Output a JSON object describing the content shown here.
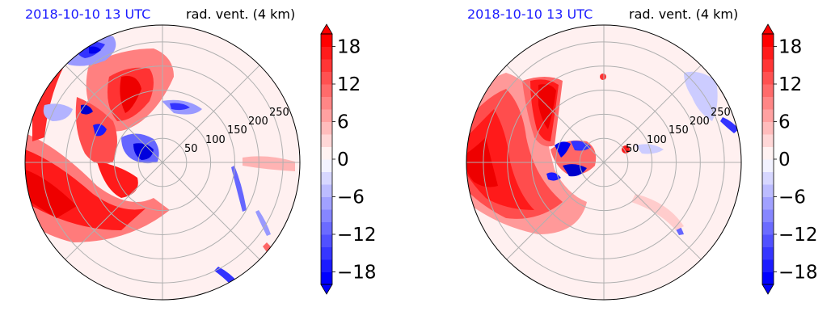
{
  "panels": [
    {
      "time_label": "2018-10-10 13 UTC",
      "variable_label": "rad. vent. (4 km)",
      "radial_ticks": [
        "50",
        "100",
        "150",
        "200",
        "250"
      ]
    },
    {
      "time_label": "2018-10-10 13 UTC",
      "variable_label": "rad. vent. (4 km)",
      "radial_ticks": [
        "50",
        "100",
        "150",
        "200",
        "250"
      ]
    }
  ],
  "colorbar": {
    "tick_labels": [
      "18",
      "12",
      "6",
      "0",
      "−6",
      "−12",
      "−18"
    ],
    "tick_values": [
      18,
      12,
      6,
      0,
      -6,
      -12,
      -18
    ],
    "range": [
      -20,
      20
    ],
    "step": 2,
    "colormap": "bwr",
    "extend": "both"
  },
  "chart_data": [
    {
      "type": "heatmap",
      "projection": "polar",
      "title": "rad. vent. (4 km)",
      "subtitle": "2018-10-10 13 UTC",
      "radial_ticks": [
        50,
        100,
        150,
        200,
        250
      ],
      "radial_max": 285,
      "color_range": [
        -20,
        20
      ],
      "regions": [
        {
          "sign": "positive",
          "angle_range_deg": [
            160,
            260
          ],
          "radius_range": [
            100,
            285
          ],
          "value": 18
        },
        {
          "sign": "positive",
          "angle_range_deg": [
            60,
            130
          ],
          "radius_range": [
            20,
            200
          ],
          "value": 16
        },
        {
          "sign": "negative",
          "angle_range_deg": [
            100,
            150
          ],
          "radius_range": [
            150,
            260
          ],
          "value": -16
        },
        {
          "sign": "negative",
          "angle_range_deg": [
            140,
            220
          ],
          "radius_range": [
            5,
            60
          ],
          "value": -18
        }
      ]
    },
    {
      "type": "heatmap",
      "projection": "polar",
      "title": "rad. vent. (4 km)",
      "subtitle": "2018-10-10 13 UTC",
      "radial_ticks": [
        50,
        100,
        150,
        200,
        250
      ],
      "radial_max": 285,
      "color_range": [
        -20,
        20
      ],
      "regions": [
        {
          "sign": "positive",
          "angle_range_deg": [
            150,
            260
          ],
          "radius_range": [
            80,
            285
          ],
          "value": 18
        },
        {
          "sign": "positive",
          "angle_range_deg": [
            95,
            150
          ],
          "radius_range": [
            40,
            190
          ],
          "value": 18
        },
        {
          "sign": "negative",
          "angle_range_deg": [
            160,
            300
          ],
          "radius_range": [
            20,
            75
          ],
          "value": -14
        },
        {
          "sign": "negative",
          "angle_range_deg": [
            15,
            40
          ],
          "radius_range": [
            220,
            280
          ],
          "value": -10
        }
      ]
    }
  ]
}
